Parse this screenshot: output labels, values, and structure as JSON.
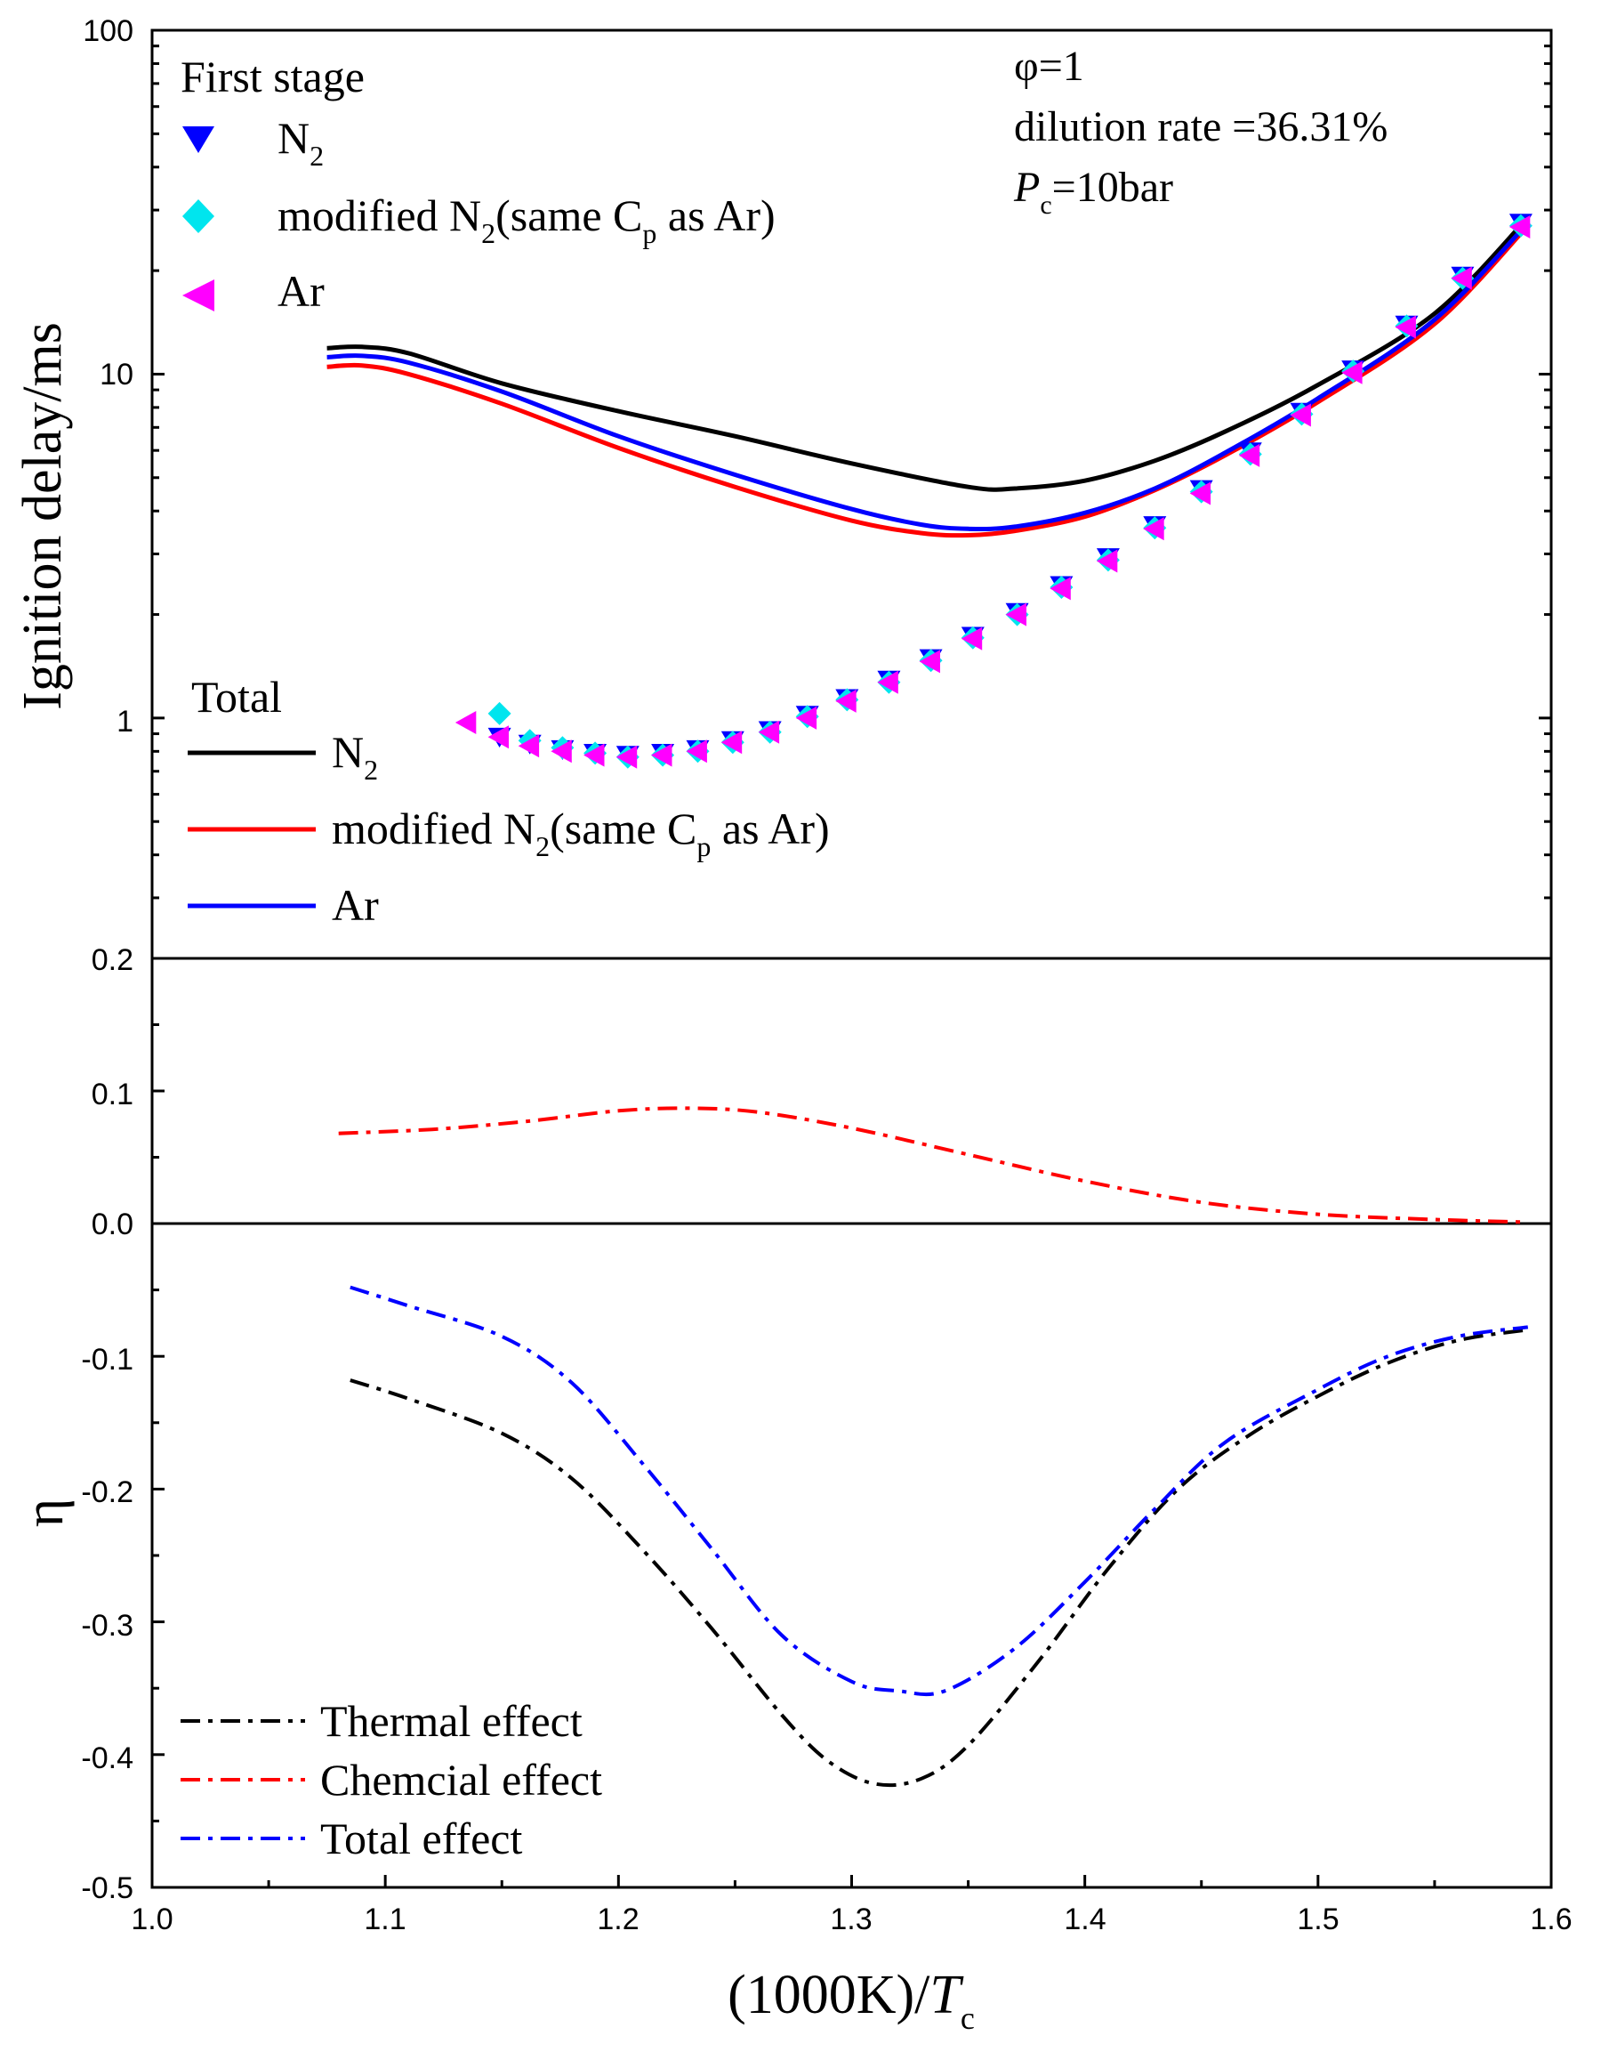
{
  "chart_data": [
    {
      "type": "line",
      "panel": "top",
      "ylabel": "Ignition delay/ms",
      "yscale": "log",
      "ylim": [
        0.2,
        100
      ],
      "xlim": [
        1.0,
        1.6
      ],
      "ytick_labels": [
        "100",
        "10",
        "1",
        "0.2"
      ],
      "annotations": {
        "phi": "φ=1",
        "dilution": "dilution rate =36.31%",
        "pressure_var": "P",
        "pressure_sub": "c",
        "pressure_rest": "=10bar"
      },
      "legend_first_stage": {
        "title": "First stage",
        "entries": [
          {
            "main": "N",
            "sub": "2",
            "rest": "",
            "sub2": "",
            "tail": "",
            "marker": "triangle-down",
            "color": "#0000ff"
          },
          {
            "main": "modified N",
            "sub": "2",
            "rest": "(same C",
            "sub2": "p",
            "tail": " as Ar)",
            "marker": "diamond",
            "color": "#00e5ee"
          },
          {
            "main": "Ar",
            "sub": "",
            "rest": "",
            "sub2": "",
            "tail": "",
            "marker": "triangle-left",
            "color": "#ff00ff"
          }
        ]
      },
      "legend_total": {
        "title": "Total",
        "entries": [
          {
            "main": "N",
            "sub": "2",
            "rest": "",
            "sub2": "",
            "tail": "",
            "color": "#000000"
          },
          {
            "main": "modified N",
            "sub": "2",
            "rest": "(same C",
            "sub2": "p",
            "tail": " as Ar)",
            "color": "#ff0000"
          },
          {
            "main": "Ar",
            "sub": "",
            "rest": "",
            "sub2": "",
            "tail": "",
            "color": "#0000ff"
          }
        ]
      },
      "series": [
        {
          "name": "Total N2",
          "style": "solid",
          "color": "#000000",
          "x": [
            1.075,
            1.09,
            1.11,
            1.15,
            1.2,
            1.25,
            1.3,
            1.35,
            1.37,
            1.4,
            1.43,
            1.46,
            1.5,
            1.55,
            1.59
          ],
          "y": [
            11.9,
            12.0,
            11.5,
            9.4,
            7.8,
            6.6,
            5.5,
            4.7,
            4.65,
            4.9,
            5.6,
            6.8,
            9.3,
            15.0,
            28.5
          ]
        },
        {
          "name": "Total modified N2",
          "style": "solid",
          "color": "#ff0000",
          "x": [
            1.075,
            1.09,
            1.11,
            1.15,
            1.2,
            1.25,
            1.3,
            1.33,
            1.35,
            1.37,
            1.4,
            1.43,
            1.46,
            1.5,
            1.55,
            1.59
          ],
          "y": [
            10.5,
            10.6,
            10.0,
            8.2,
            6.1,
            4.7,
            3.75,
            3.45,
            3.4,
            3.5,
            3.85,
            4.6,
            5.8,
            8.3,
            14.0,
            27.0
          ]
        },
        {
          "name": "Total Ar",
          "style": "solid",
          "color": "#0000ff",
          "x": [
            1.075,
            1.09,
            1.11,
            1.15,
            1.2,
            1.25,
            1.3,
            1.33,
            1.35,
            1.37,
            1.4,
            1.43,
            1.46,
            1.5,
            1.55,
            1.59
          ],
          "y": [
            11.2,
            11.3,
            10.8,
            8.9,
            6.6,
            5.1,
            4.05,
            3.65,
            3.55,
            3.6,
            3.95,
            4.65,
            5.9,
            8.5,
            14.4,
            27.5
          ]
        },
        {
          "name": "First stage N2",
          "style": "marker",
          "marker": "triangle-down",
          "color": "#0000ff",
          "x": [
            1.149,
            1.162,
            1.176,
            1.19,
            1.204,
            1.219,
            1.234,
            1.249,
            1.265,
            1.281,
            1.298,
            1.316,
            1.334,
            1.352,
            1.371,
            1.39,
            1.41,
            1.43,
            1.45,
            1.471,
            1.493,
            1.515,
            1.538,
            1.562,
            1.587
          ],
          "y": [
            0.88,
            0.84,
            0.81,
            0.79,
            0.78,
            0.79,
            0.81,
            0.86,
            0.92,
            1.02,
            1.14,
            1.29,
            1.49,
            1.73,
            2.03,
            2.43,
            2.93,
            3.63,
            4.62,
            5.95,
            7.75,
            10.3,
            13.9,
            19.3,
            27.5
          ]
        },
        {
          "name": "First stage modified N2",
          "style": "marker",
          "marker": "diamond",
          "color": "#00e5ee",
          "x": [
            1.149,
            1.162,
            1.176,
            1.19,
            1.204,
            1.219,
            1.234,
            1.249,
            1.265,
            1.281,
            1.298,
            1.316,
            1.334,
            1.352,
            1.371,
            1.39,
            1.41,
            1.43,
            1.45,
            1.471,
            1.493,
            1.515,
            1.538,
            1.562,
            1.587
          ],
          "y": [
            1.03,
            0.86,
            0.82,
            0.79,
            0.77,
            0.78,
            0.8,
            0.85,
            0.91,
            1.01,
            1.13,
            1.27,
            1.47,
            1.71,
            2.0,
            2.4,
            2.88,
            3.57,
            4.55,
            5.85,
            7.65,
            10.2,
            13.8,
            19.0,
            27.0
          ]
        },
        {
          "name": "First stage Ar",
          "style": "marker",
          "marker": "triangle-left",
          "color": "#ff00ff",
          "x": [
            1.135,
            1.149,
            1.162,
            1.176,
            1.19,
            1.204,
            1.219,
            1.234,
            1.249,
            1.265,
            1.281,
            1.298,
            1.316,
            1.334,
            1.352,
            1.371,
            1.39,
            1.41,
            1.43,
            1.45,
            1.471,
            1.493,
            1.515,
            1.538,
            1.562,
            1.587
          ],
          "y": [
            0.97,
            0.88,
            0.83,
            0.8,
            0.78,
            0.77,
            0.78,
            0.8,
            0.85,
            0.91,
            1.0,
            1.12,
            1.27,
            1.46,
            1.7,
            2.0,
            2.38,
            2.86,
            3.55,
            4.5,
            5.8,
            7.6,
            10.1,
            13.7,
            19.0,
            26.8
          ]
        }
      ]
    },
    {
      "type": "line",
      "panel": "middle",
      "ylim": [
        0.0,
        0.2
      ],
      "xlim": [
        1.0,
        1.6
      ],
      "ytick_values": [
        0.0,
        0.1,
        0.2
      ],
      "ytick_labels": [
        "0.0",
        "0.1",
        "0.2"
      ],
      "series": [
        {
          "name": "Chemcial effect",
          "style": "dashdot",
          "color": "#ff0000",
          "x": [
            1.08,
            1.12,
            1.16,
            1.2,
            1.23,
            1.26,
            1.3,
            1.35,
            1.4,
            1.45,
            1.5,
            1.55,
            1.59
          ],
          "y": [
            0.068,
            0.071,
            0.077,
            0.085,
            0.087,
            0.084,
            0.072,
            0.052,
            0.032,
            0.016,
            0.007,
            0.003,
            0.001
          ]
        }
      ]
    },
    {
      "type": "line",
      "panel": "bottom",
      "ylabel": "η",
      "xlabel_main": "(1000K)/",
      "xlabel_var": "T",
      "xlabel_sub": "c",
      "ylim": [
        -0.5,
        0.0
      ],
      "xlim": [
        1.0,
        1.6
      ],
      "ytick_values": [
        -0.1,
        -0.2,
        -0.3,
        -0.4,
        -0.5
      ],
      "ytick_labels": [
        "-0.1",
        "-0.2",
        "-0.3",
        "-0.4",
        "-0.5"
      ],
      "xtick_values": [
        1.0,
        1.1,
        1.2,
        1.3,
        1.4,
        1.5,
        1.6
      ],
      "xtick_labels": [
        "1.0",
        "1.1",
        "1.2",
        "1.3",
        "1.4",
        "1.5",
        "1.6"
      ],
      "legend": [
        "Thermal effect",
        "Chemcial effect",
        "Total effect"
      ],
      "legend_colors": [
        "#000000",
        "#ff0000",
        "#0000ff"
      ],
      "series": [
        {
          "name": "Thermal effect",
          "style": "dashdot",
          "color": "#000000",
          "x": [
            1.085,
            1.11,
            1.15,
            1.18,
            1.21,
            1.24,
            1.27,
            1.29,
            1.31,
            1.33,
            1.35,
            1.38,
            1.41,
            1.44,
            1.47,
            1.5,
            1.53,
            1.56,
            1.59
          ],
          "y": [
            -0.118,
            -0.132,
            -0.158,
            -0.192,
            -0.245,
            -0.305,
            -0.37,
            -0.405,
            -0.422,
            -0.418,
            -0.393,
            -0.33,
            -0.26,
            -0.2,
            -0.16,
            -0.13,
            -0.105,
            -0.088,
            -0.08
          ]
        },
        {
          "name": "Total effect",
          "style": "dashdot",
          "color": "#0000ff",
          "x": [
            1.085,
            1.11,
            1.15,
            1.18,
            1.21,
            1.24,
            1.27,
            1.3,
            1.32,
            1.34,
            1.37,
            1.4,
            1.43,
            1.46,
            1.5,
            1.53,
            1.56,
            1.59
          ],
          "y": [
            -0.048,
            -0.062,
            -0.085,
            -0.12,
            -0.18,
            -0.245,
            -0.31,
            -0.345,
            -0.352,
            -0.352,
            -0.32,
            -0.27,
            -0.215,
            -0.165,
            -0.125,
            -0.1,
            -0.085,
            -0.078
          ]
        }
      ]
    }
  ]
}
